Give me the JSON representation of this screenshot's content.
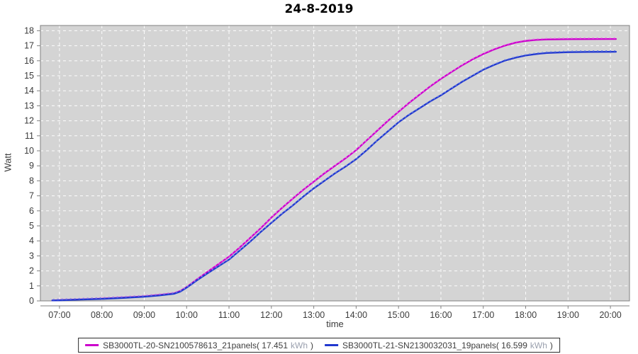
{
  "title": "24-8-2019",
  "legend": {
    "items": [
      {
        "main": "SB3000TL-20-SN2100578613_21panels( 17.451",
        "unit": "kWh",
        "close": ")"
      },
      {
        "main": "SB3000TL-21-SN2130032031_19panels( 16.599",
        "unit": "kWh",
        "close": ")"
      }
    ]
  },
  "chart_data": {
    "type": "line",
    "title": "24-8-2019",
    "xlabel": "time",
    "ylabel": "Watt",
    "x_domain": [
      6.55,
      20.45
    ],
    "y_domain": [
      0,
      18.35
    ],
    "x_ticks": [
      {
        "v": 7,
        "label": "07:00"
      },
      {
        "v": 8,
        "label": "08:00"
      },
      {
        "v": 9,
        "label": "09:00"
      },
      {
        "v": 10,
        "label": "10:00"
      },
      {
        "v": 11,
        "label": "11:00"
      },
      {
        "v": 12,
        "label": "12:00"
      },
      {
        "v": 13,
        "label": "13:00"
      },
      {
        "v": 14,
        "label": "14:00"
      },
      {
        "v": 15,
        "label": "15:00"
      },
      {
        "v": 16,
        "label": "16:00"
      },
      {
        "v": 17,
        "label": "17:00"
      },
      {
        "v": 18,
        "label": "18:00"
      },
      {
        "v": 19,
        "label": "19:00"
      },
      {
        "v": 20,
        "label": "20:00"
      }
    ],
    "y_ticks": [
      0,
      1,
      2,
      3,
      4,
      5,
      6,
      7,
      8,
      9,
      10,
      11,
      12,
      13,
      14,
      15,
      16,
      17,
      18
    ],
    "grid": true,
    "legend_position": "bottom",
    "plot_bg": "#d4d4d4",
    "grid_color": "#ffffff",
    "axis_color": "#808080",
    "tick_label_color": "#3c3c3c",
    "series": [
      {
        "name": "SB3000TL-20-SN2100578613_21panels",
        "total_kwh": "17.451",
        "color": "#cc00cc",
        "marker_color": "#ea6cea",
        "points": [
          [
            6.83,
            0.03
          ],
          [
            7.0,
            0.05
          ],
          [
            7.5,
            0.1
          ],
          [
            8.0,
            0.15
          ],
          [
            8.5,
            0.22
          ],
          [
            9.0,
            0.3
          ],
          [
            9.35,
            0.39
          ],
          [
            9.7,
            0.5
          ],
          [
            9.85,
            0.66
          ],
          [
            10.0,
            0.92
          ],
          [
            10.25,
            1.45
          ],
          [
            10.5,
            1.95
          ],
          [
            10.75,
            2.45
          ],
          [
            11.0,
            2.95
          ],
          [
            11.25,
            3.55
          ],
          [
            11.5,
            4.2
          ],
          [
            11.75,
            4.85
          ],
          [
            12.0,
            5.55
          ],
          [
            12.25,
            6.2
          ],
          [
            12.5,
            6.8
          ],
          [
            12.75,
            7.4
          ],
          [
            13.0,
            7.95
          ],
          [
            13.25,
            8.5
          ],
          [
            13.5,
            9.0
          ],
          [
            13.75,
            9.5
          ],
          [
            14.0,
            10.05
          ],
          [
            14.25,
            10.7
          ],
          [
            14.5,
            11.35
          ],
          [
            14.75,
            12.0
          ],
          [
            15.0,
            12.6
          ],
          [
            15.25,
            13.2
          ],
          [
            15.5,
            13.75
          ],
          [
            15.75,
            14.3
          ],
          [
            16.0,
            14.8
          ],
          [
            16.25,
            15.25
          ],
          [
            16.5,
            15.7
          ],
          [
            16.75,
            16.1
          ],
          [
            17.0,
            16.45
          ],
          [
            17.25,
            16.75
          ],
          [
            17.5,
            17.0
          ],
          [
            17.75,
            17.2
          ],
          [
            18.0,
            17.32
          ],
          [
            18.25,
            17.39
          ],
          [
            18.5,
            17.42
          ],
          [
            19.0,
            17.44
          ],
          [
            19.5,
            17.445
          ],
          [
            20.0,
            17.45
          ],
          [
            20.13,
            17.451
          ]
        ]
      },
      {
        "name": "SB3000TL-21-SN2130032031_19panels",
        "total_kwh": "16.599",
        "color": "#2138cf",
        "marker_color": "#6e84e6",
        "points": [
          [
            6.83,
            0.03
          ],
          [
            7.0,
            0.04
          ],
          [
            7.5,
            0.09
          ],
          [
            8.0,
            0.13
          ],
          [
            8.5,
            0.2
          ],
          [
            9.0,
            0.28
          ],
          [
            9.35,
            0.36
          ],
          [
            9.7,
            0.47
          ],
          [
            9.85,
            0.62
          ],
          [
            10.0,
            0.88
          ],
          [
            10.25,
            1.38
          ],
          [
            10.5,
            1.85
          ],
          [
            10.75,
            2.3
          ],
          [
            11.0,
            2.75
          ],
          [
            11.25,
            3.35
          ],
          [
            11.5,
            3.95
          ],
          [
            11.75,
            4.6
          ],
          [
            12.0,
            5.2
          ],
          [
            12.25,
            5.8
          ],
          [
            12.5,
            6.35
          ],
          [
            12.75,
            6.95
          ],
          [
            13.0,
            7.5
          ],
          [
            13.25,
            8.0
          ],
          [
            13.5,
            8.5
          ],
          [
            13.75,
            8.95
          ],
          [
            14.0,
            9.45
          ],
          [
            14.25,
            10.05
          ],
          [
            14.5,
            10.7
          ],
          [
            14.75,
            11.3
          ],
          [
            15.0,
            11.9
          ],
          [
            15.25,
            12.4
          ],
          [
            15.5,
            12.85
          ],
          [
            15.75,
            13.3
          ],
          [
            16.0,
            13.7
          ],
          [
            16.25,
            14.15
          ],
          [
            16.5,
            14.6
          ],
          [
            16.75,
            15.0
          ],
          [
            17.0,
            15.4
          ],
          [
            17.25,
            15.72
          ],
          [
            17.5,
            16.0
          ],
          [
            17.75,
            16.2
          ],
          [
            18.0,
            16.35
          ],
          [
            18.25,
            16.45
          ],
          [
            18.5,
            16.52
          ],
          [
            19.0,
            16.57
          ],
          [
            19.5,
            16.59
          ],
          [
            20.0,
            16.597
          ],
          [
            20.13,
            16.599
          ]
        ]
      }
    ]
  }
}
